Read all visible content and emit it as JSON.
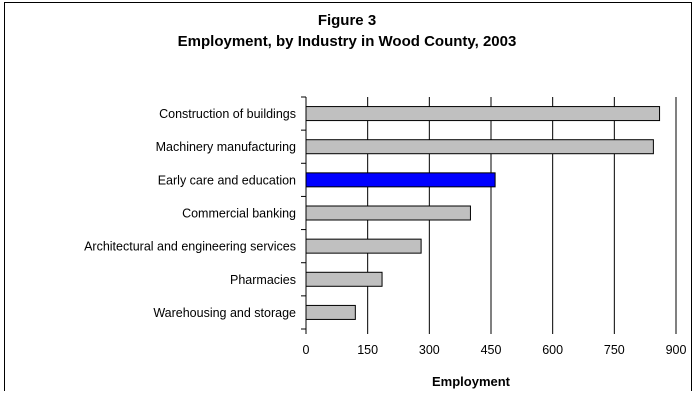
{
  "chart_data": {
    "type": "bar",
    "orientation": "horizontal",
    "title": "Figure 3",
    "subtitle": "Employment, by Industry in Wood County, 2003",
    "xlabel": "Employment",
    "ylabel": "",
    "categories": [
      "Construction of buildings",
      "Machinery manufacturing",
      "Early care and education",
      "Commercial banking",
      "Architectural and engineering services",
      "Pharmacies",
      "Warehousing and storage"
    ],
    "values": [
      860,
      845,
      460,
      400,
      280,
      185,
      120
    ],
    "highlight_index": 2,
    "colors": {
      "bar": "#c0c0c0",
      "highlight": "#0000ff",
      "grid": "#000000"
    },
    "xlim": [
      0,
      900
    ],
    "xticks": [
      0,
      150,
      300,
      450,
      600,
      750,
      900
    ],
    "grid": true,
    "legend": "none"
  }
}
